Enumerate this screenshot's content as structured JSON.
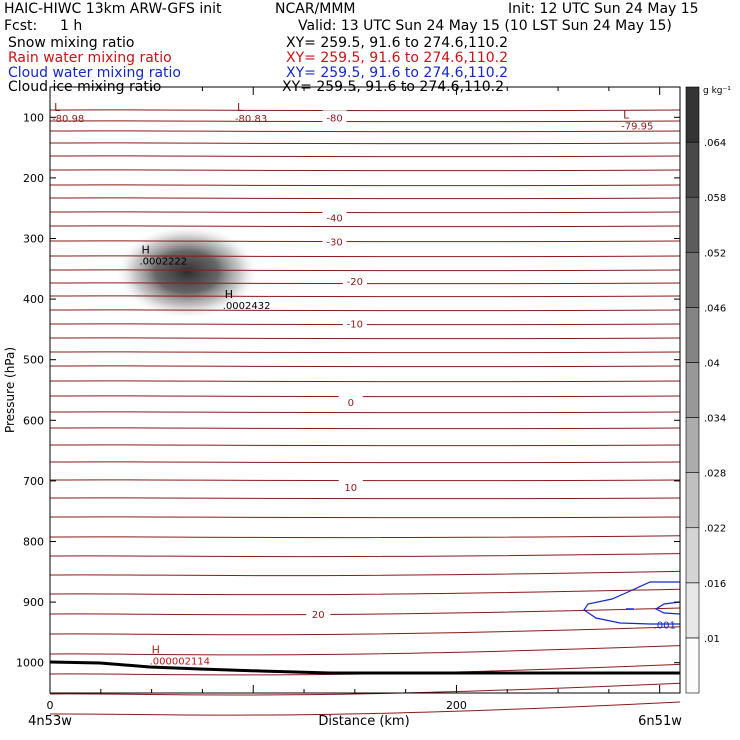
{
  "header": {
    "title": "HAIC-HIWC 13km ARW-GFS init",
    "org": "NCAR/MMM",
    "init": "Init: 12 UTC Sun 24 May 15",
    "fcst_label": "Fcst:",
    "fcst_value": "1 h",
    "valid": "Valid: 13 UTC Sun 24 May 15 (10 LST Sun 24 May 15)",
    "fields": [
      {
        "name": "Snow mixing ratio",
        "xy": "XY= 259.5, 91.6 to 274.6,110.2",
        "color": "#000000"
      },
      {
        "name": "Rain water mixing ratio",
        "xy": "XY= 259.5, 91.6 to 274.6,110.2",
        "color": "#c81414"
      },
      {
        "name": "Cloud water mixing ratio",
        "xy": "XY= 259.5, 91.6 to 274.6,110.2",
        "color": "#1428c8"
      },
      {
        "name": "Cloud ice mixing ratio",
        "xy": "XY= 259.5, 91.6 to 274.6,110.2",
        "color": "#000000"
      }
    ]
  },
  "chart_data": {
    "type": "heatmap",
    "ylabel": "Pressure (hPa)",
    "xlabel": "Distance (km)",
    "x_start_label": "4n53w",
    "x_end_label": "6n51w",
    "xlim": [
      0,
      310
    ],
    "ylim": [
      1050,
      50
    ],
    "x_ticks": [
      0,
      200
    ],
    "x_tick_labels": [
      "0",
      "200"
    ],
    "y_ticks": [
      100,
      200,
      300,
      400,
      500,
      600,
      700,
      800,
      900,
      1000
    ],
    "y_tick_labels": [
      "100",
      "200",
      "300",
      "400",
      "500",
      "600",
      "700",
      "800",
      "900",
      "1000"
    ],
    "colorbar": {
      "units": "g kg⁻¹",
      "levels": [
        0.01,
        0.016,
        0.022,
        0.028,
        0.034,
        0.04,
        0.046,
        0.052,
        0.058,
        0.064
      ],
      "labels": [
        ".01",
        ".016",
        ".022",
        ".028",
        ".034",
        ".04",
        ".046",
        ".052",
        ".058",
        ".064"
      ]
    },
    "temperature_contour_color": "#8b1a1a",
    "temperature_contour_labels": [
      {
        "text": "-80",
        "x": 140,
        "p": 100
      },
      {
        "text": "-40",
        "x": 140,
        "p": 265
      },
      {
        "text": "-30",
        "x": 140,
        "p": 305
      },
      {
        "text": "-20",
        "x": 150,
        "p": 370
      },
      {
        "text": "-10",
        "x": 150,
        "p": 440
      },
      {
        "text": "0",
        "x": 148,
        "p": 570
      },
      {
        "text": "10",
        "x": 148,
        "p": 710
      },
      {
        "text": "20",
        "x": 132,
        "p": 920
      }
    ],
    "extrema": [
      {
        "sym": "L",
        "value": "-80.98",
        "x": 2,
        "p": 90,
        "color": "#8b1a1a"
      },
      {
        "sym": "L",
        "value": "-80.83",
        "x": 92,
        "p": 90,
        "color": "#8b1a1a"
      },
      {
        "sym": "L",
        "value": "-79.95",
        "x": 282,
        "p": 102,
        "color": "#8b1a1a"
      },
      {
        "sym": "H",
        "value": ".0002222",
        "x": 45,
        "p": 325,
        "color": "#000000"
      },
      {
        "sym": "H",
        "value": ".0002432",
        "x": 86,
        "p": 398,
        "color": "#000000"
      },
      {
        "sym": "H",
        "value": ".000002114",
        "x": 50,
        "p": 985,
        "color": "#c81414"
      },
      {
        "sym": "",
        "value": ".001",
        "x": 298,
        "p": 925,
        "color": "#1428c8"
      }
    ],
    "snow_max": {
      "x": 66,
      "p": 345,
      "value": 0.064
    }
  }
}
